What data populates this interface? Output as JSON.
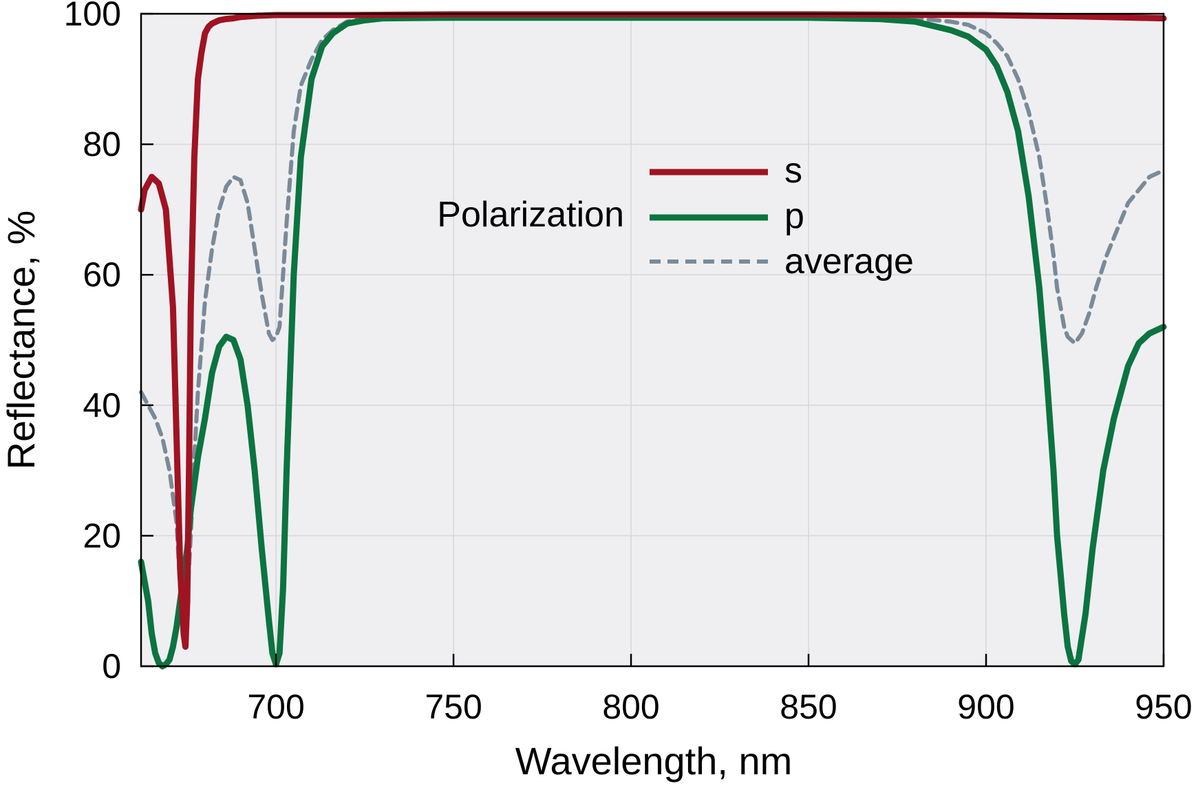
{
  "chart_data": {
    "type": "line",
    "xlabel": "Wavelength, nm",
    "ylabel": "Reflectance, %",
    "xlim": [
      662,
      950
    ],
    "ylim": [
      0,
      100
    ],
    "xticks": [
      700,
      750,
      800,
      850,
      900,
      950
    ],
    "yticks": [
      0,
      20,
      40,
      60,
      80,
      100
    ],
    "grid": true,
    "colors": {
      "plot_background": "#efeff1",
      "grid": "#d6d6da",
      "s": "#a01322",
      "p": "#0b7440",
      "average": "#7a8a99"
    },
    "legend": {
      "title": "Polarization",
      "placement": "top-center"
    },
    "series": [
      {
        "name": "s",
        "style": "solid",
        "x": [
          662,
          663,
          665,
          667,
          669,
          671,
          672,
          673,
          674,
          674.5,
          675,
          675.5,
          676,
          677,
          678,
          679,
          680,
          681,
          682,
          684,
          686,
          688,
          690,
          695,
          700,
          720,
          750,
          800,
          850,
          900,
          925,
          950
        ],
        "y": [
          70,
          73,
          75,
          74,
          70,
          55,
          35,
          15,
          5,
          3,
          10,
          30,
          55,
          78,
          90,
          94,
          97,
          98,
          98.5,
          99,
          99.2,
          99.3,
          99.5,
          99.7,
          99.8,
          99.8,
          99.9,
          99.9,
          99.9,
          99.8,
          99.6,
          99.3
        ]
      },
      {
        "name": "p",
        "style": "solid",
        "x": [
          662,
          664,
          665,
          666,
          667,
          668,
          669,
          670,
          671,
          672,
          673,
          675,
          676,
          678,
          680,
          682,
          684,
          686,
          688,
          690,
          692,
          694,
          696,
          698,
          699,
          700,
          701,
          702,
          703,
          705,
          707,
          710,
          713,
          716,
          720,
          725,
          730,
          750,
          800,
          850,
          870,
          880,
          890,
          895,
          900,
          903,
          906,
          909,
          912,
          915,
          917,
          919,
          920,
          921,
          922,
          923,
          924,
          925,
          926,
          928,
          930,
          933,
          936,
          940,
          943,
          946,
          950
        ],
        "y": [
          16,
          10,
          5,
          2,
          0.5,
          0,
          0.3,
          1,
          3,
          6,
          10,
          18,
          24,
          32,
          38,
          45,
          49,
          50.5,
          50,
          47,
          40,
          30,
          18,
          7,
          2,
          0.3,
          2,
          12,
          30,
          60,
          78,
          90,
          95,
          97,
          98.5,
          99,
          99.3,
          99.4,
          99.4,
          99.4,
          99.2,
          98.8,
          97.5,
          96.5,
          94.5,
          92,
          88,
          82,
          72,
          58,
          45,
          30,
          20,
          14,
          8,
          3,
          0.8,
          0.3,
          1,
          8,
          18,
          30,
          38,
          46,
          49.5,
          51,
          52
        ]
      },
      {
        "name": "average",
        "style": "dashed",
        "x": [
          662,
          664,
          666,
          668,
          670,
          672,
          673,
          674,
          675,
          676,
          677,
          678,
          680,
          682,
          684,
          686,
          688,
          690,
          692,
          694,
          696,
          698,
          699,
          700,
          701,
          703,
          705,
          707,
          710,
          713,
          716,
          720,
          725,
          730,
          750,
          800,
          850,
          870,
          880,
          890,
          895,
          900,
          903,
          906,
          909,
          912,
          915,
          917,
          919,
          920,
          921,
          922,
          923,
          924,
          925,
          927,
          929,
          931,
          934,
          937,
          940,
          943,
          946,
          950
        ],
        "y": [
          42,
          40,
          38,
          35,
          30,
          22,
          12,
          6,
          10,
          20,
          32,
          42,
          56,
          64,
          70,
          73.5,
          75,
          74.5,
          71,
          64,
          57,
          51,
          50,
          50.5,
          52,
          68,
          82,
          89,
          93,
          96,
          97.5,
          98.8,
          99.3,
          99.5,
          99.6,
          99.6,
          99.6,
          99.5,
          99.3,
          98.8,
          98.3,
          97,
          95.5,
          93.5,
          90,
          85,
          78,
          71,
          63,
          58,
          55,
          52,
          50.5,
          50,
          49.5,
          51,
          54,
          58,
          63,
          67,
          71,
          73,
          75,
          76
        ]
      }
    ]
  }
}
